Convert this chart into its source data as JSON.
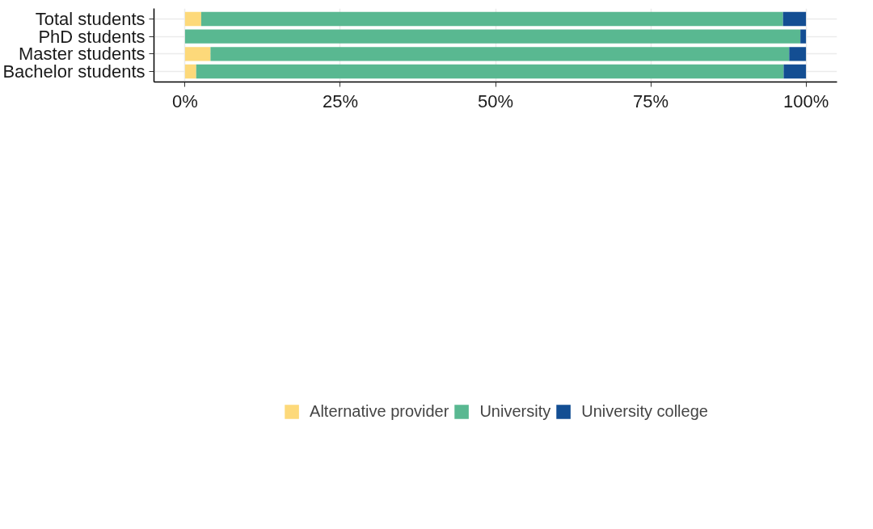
{
  "chart_data": {
    "type": "bar",
    "orientation": "horizontal",
    "stacked": true,
    "categories": [
      "Total students",
      "PhD students",
      "Master students",
      "Bachelor students"
    ],
    "series": [
      {
        "name": "Alternative provider",
        "color": "#fdd97a",
        "values": [
          2.6,
          0,
          4.1,
          1.8
        ]
      },
      {
        "name": "University",
        "color": "#59b891",
        "values": [
          93.7,
          99.1,
          93.2,
          94.6
        ]
      },
      {
        "name": "University college",
        "color": "#134e93",
        "values": [
          3.7,
          0.9,
          2.7,
          3.6
        ]
      }
    ],
    "xlim": [
      -5,
      105
    ],
    "xticks": [
      {
        "value": 0,
        "label": "0%"
      },
      {
        "value": 25,
        "label": "25%"
      },
      {
        "value": 50,
        "label": "50%"
      },
      {
        "value": 75,
        "label": "75%"
      },
      {
        "value": 100,
        "label": "100%"
      }
    ],
    "grid": true,
    "legend": "bottom"
  }
}
